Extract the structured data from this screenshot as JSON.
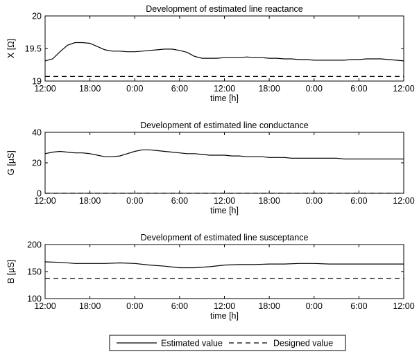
{
  "legend": {
    "estimated_label": "Estimated value",
    "designed_label": "Designed value"
  },
  "chart_data": [
    {
      "type": "line",
      "title": "Development of estimated line reactance",
      "xlabel": "time [h]",
      "ylabel": "X [Ω]",
      "ylim": [
        19,
        20
      ],
      "yticks": [
        19,
        19.5,
        20
      ],
      "ytick_labels": [
        "19",
        "19.5",
        "20"
      ],
      "xlim": [
        0,
        48
      ],
      "xticks": [
        0,
        6,
        12,
        18,
        24,
        30,
        36,
        42,
        48
      ],
      "xtick_labels": [
        "12:00",
        "18:00",
        "0:00",
        "6:00",
        "12:00",
        "18:00",
        "0:00",
        "6:00",
        "12:00"
      ],
      "grid": false,
      "series": [
        {
          "name": "Estimated value",
          "style": "solid",
          "x": [
            0,
            1,
            2,
            3,
            4,
            5,
            6,
            7,
            8,
            9,
            10,
            11,
            12,
            13,
            14,
            15,
            16,
            17,
            18,
            19,
            20,
            21,
            22,
            23,
            24,
            25,
            26,
            27,
            28,
            29,
            30,
            31,
            32,
            33,
            34,
            35,
            36,
            37,
            38,
            39,
            40,
            41,
            42,
            43,
            44,
            45,
            46,
            47,
            48
          ],
          "values": [
            19.31,
            19.34,
            19.45,
            19.55,
            19.59,
            19.59,
            19.58,
            19.53,
            19.48,
            19.46,
            19.46,
            19.45,
            19.45,
            19.46,
            19.47,
            19.48,
            19.49,
            19.49,
            19.47,
            19.44,
            19.38,
            19.35,
            19.35,
            19.35,
            19.36,
            19.36,
            19.36,
            19.37,
            19.36,
            19.36,
            19.35,
            19.35,
            19.34,
            19.34,
            19.33,
            19.33,
            19.32,
            19.32,
            19.32,
            19.32,
            19.32,
            19.33,
            19.33,
            19.34,
            19.34,
            19.34,
            19.33,
            19.32,
            19.31
          ]
        },
        {
          "name": "Designed value",
          "style": "dashed",
          "x": [
            0,
            48
          ],
          "values": [
            19.07,
            19.07
          ]
        }
      ]
    },
    {
      "type": "line",
      "title": "Development of estimated line conductance",
      "xlabel": "time [h]",
      "ylabel": "G [µS]",
      "ylim": [
        0,
        40
      ],
      "yticks": [
        0,
        20,
        40
      ],
      "ytick_labels": [
        "0",
        "20",
        "40"
      ],
      "xlim": [
        0,
        48
      ],
      "xticks": [
        0,
        6,
        12,
        18,
        24,
        30,
        36,
        42,
        48
      ],
      "xtick_labels": [
        "12:00",
        "18:00",
        "0:00",
        "6:00",
        "12:00",
        "18:00",
        "0:00",
        "6:00",
        "12:00"
      ],
      "grid": false,
      "series": [
        {
          "name": "Estimated value",
          "style": "solid",
          "x": [
            0,
            1,
            2,
            3,
            4,
            5,
            6,
            7,
            8,
            9,
            10,
            11,
            12,
            13,
            14,
            15,
            16,
            17,
            18,
            19,
            20,
            21,
            22,
            23,
            24,
            25,
            26,
            27,
            28,
            29,
            30,
            31,
            32,
            33,
            34,
            35,
            36,
            37,
            38,
            39,
            40,
            41,
            42,
            43,
            44,
            45,
            46,
            47,
            48
          ],
          "values": [
            26,
            27,
            27.5,
            27,
            26.5,
            26.5,
            26,
            25,
            24,
            24,
            24.5,
            26,
            27.5,
            28.5,
            28.5,
            28,
            27.5,
            27,
            26.5,
            26,
            26,
            25.5,
            25,
            25,
            25,
            24.5,
            24.5,
            24,
            24,
            24,
            23.5,
            23.5,
            23.5,
            23,
            23,
            23,
            23,
            23,
            23,
            23,
            22.5,
            22.5,
            22.5,
            22.5,
            22.5,
            22.5,
            22.5,
            22.5,
            22.5
          ]
        },
        {
          "name": "Designed value",
          "style": "dashed",
          "x": [
            0,
            48
          ],
          "values": [
            0,
            0
          ]
        }
      ]
    },
    {
      "type": "line",
      "title": "Development of estimated line susceptance",
      "xlabel": "time [h]",
      "ylabel": "B [µS]",
      "ylim": [
        100,
        200
      ],
      "yticks": [
        100,
        150,
        200
      ],
      "ytick_labels": [
        "100",
        "150",
        "200"
      ],
      "xlim": [
        0,
        48
      ],
      "xticks": [
        0,
        6,
        12,
        18,
        24,
        30,
        36,
        42,
        48
      ],
      "xtick_labels": [
        "12:00",
        "18:00",
        "0:00",
        "6:00",
        "12:00",
        "18:00",
        "0:00",
        "6:00",
        "12:00"
      ],
      "grid": false,
      "series": [
        {
          "name": "Estimated value",
          "style": "solid",
          "x": [
            0,
            2,
            4,
            6,
            8,
            10,
            12,
            14,
            16,
            18,
            20,
            22,
            24,
            26,
            28,
            30,
            32,
            34,
            36,
            38,
            40,
            42,
            44,
            46,
            48
          ],
          "values": [
            168,
            167,
            165,
            165,
            165,
            166,
            165,
            162,
            160,
            157,
            157,
            159,
            162,
            163,
            163,
            164,
            164,
            165,
            165,
            164,
            164,
            164,
            164,
            164,
            164
          ]
        },
        {
          "name": "Designed value",
          "style": "dashed",
          "x": [
            0,
            48
          ],
          "values": [
            137,
            137
          ]
        }
      ]
    }
  ]
}
